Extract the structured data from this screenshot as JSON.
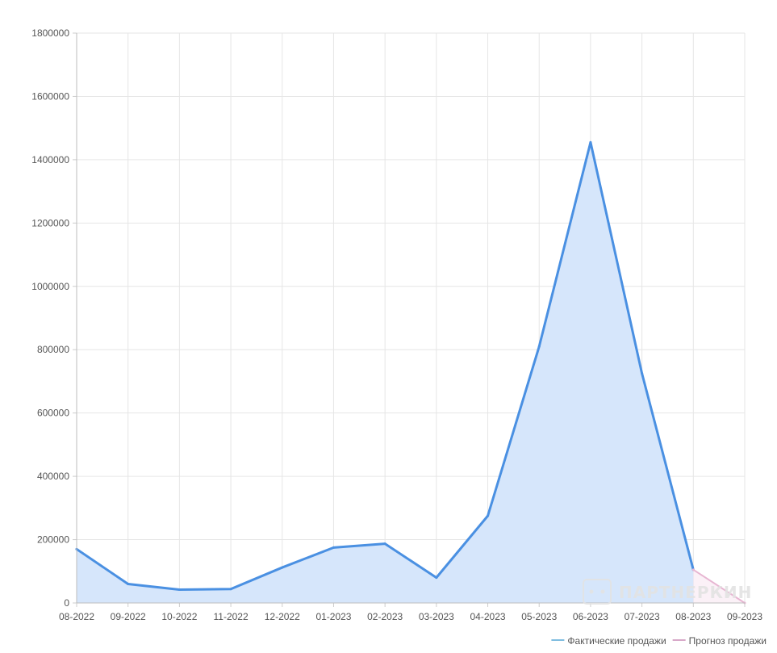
{
  "chart_data": {
    "type": "area",
    "title": "",
    "xlabel": "",
    "ylabel": "",
    "categories": [
      "08-2022",
      "09-2022",
      "10-2022",
      "11-2022",
      "12-2022",
      "01-2023",
      "02-2023",
      "03-2023",
      "04-2023",
      "05-2023",
      "06-2023",
      "07-2023",
      "08-2023",
      "09-2023"
    ],
    "ylim": [
      0,
      1800000
    ],
    "yticks": [
      0,
      200000,
      400000,
      600000,
      800000,
      1000000,
      1200000,
      1400000,
      1600000,
      1800000
    ],
    "grid": true,
    "legend_position": "bottom-right",
    "series": [
      {
        "name": "Фактические продажи",
        "color": "#4a90e2",
        "fill": "#d6e6fb",
        "legend_color": "#7fbde0",
        "values": [
          170000,
          60000,
          42000,
          44000,
          112000,
          175000,
          187000,
          80000,
          275000,
          810000,
          1455000,
          725000,
          105000,
          null
        ]
      },
      {
        "name": "Прогноз продажи",
        "color": "#e7b6d2",
        "fill": "#f9e8f2",
        "legend_color": "#d7a8c8",
        "values": [
          null,
          null,
          null,
          null,
          null,
          null,
          null,
          null,
          null,
          null,
          null,
          null,
          105000,
          0
        ]
      }
    ]
  },
  "watermark": {
    "text": "ПАРТНЕРКИН",
    "icon": "chat-icon"
  }
}
